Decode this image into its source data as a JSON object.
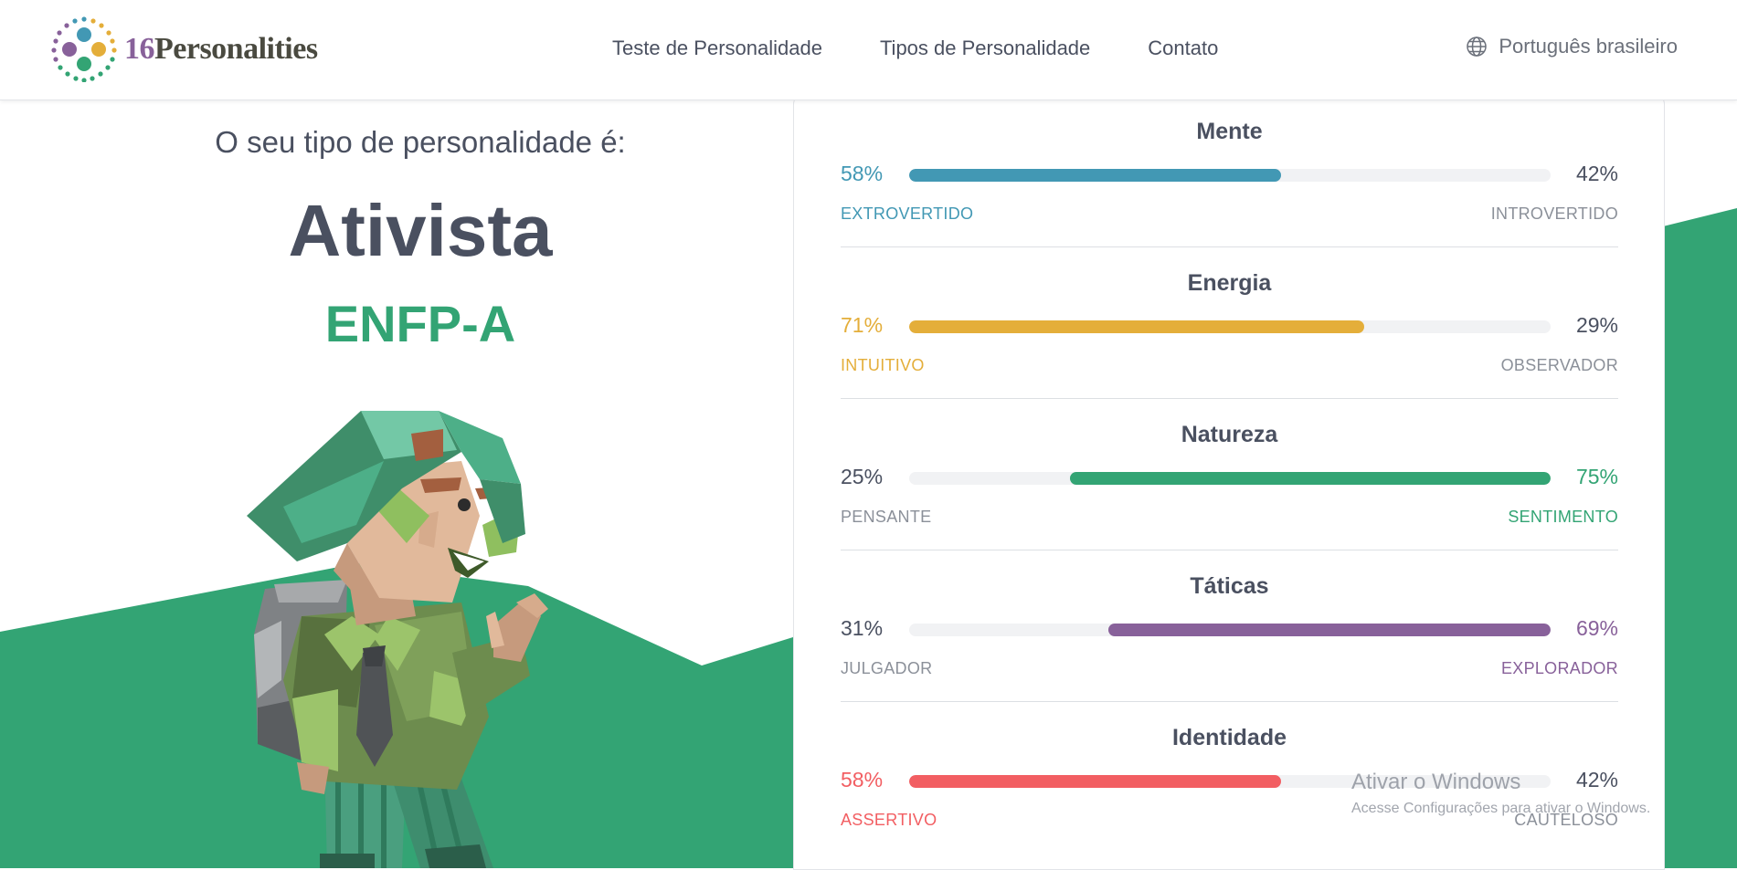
{
  "header": {
    "logo": {
      "number": "16",
      "word": "Personalities"
    },
    "nav": [
      {
        "label": "Teste de Personalidade"
      },
      {
        "label": "Tipos de Personalidade"
      },
      {
        "label": "Contato"
      }
    ],
    "language": "Português brasileiro"
  },
  "result": {
    "intro": "O seu tipo de personalidade é:",
    "type_name": "Ativista",
    "type_code": "ENFP-A"
  },
  "traits": [
    {
      "title": "Mente",
      "left_pct": "58%",
      "right_pct": "42%",
      "left_pole": "EXTROVERTIDO",
      "right_pole": "INTROVERTIDO",
      "value": 58,
      "dominant": "left",
      "color": "#4298b4"
    },
    {
      "title": "Energia",
      "left_pct": "71%",
      "right_pct": "29%",
      "left_pole": "INTUITIVO",
      "right_pole": "OBSERVADOR",
      "value": 71,
      "dominant": "left",
      "color": "#e4ae3a"
    },
    {
      "title": "Natureza",
      "left_pct": "25%",
      "right_pct": "75%",
      "left_pole": "PENSANTE",
      "right_pole": "SENTIMENTO",
      "value": 75,
      "dominant": "right",
      "color": "#33a474"
    },
    {
      "title": "Táticas",
      "left_pct": "31%",
      "right_pct": "69%",
      "left_pole": "JULGADOR",
      "right_pole": "EXPLORADOR",
      "value": 69,
      "dominant": "right",
      "color": "#88619a"
    },
    {
      "title": "Identidade",
      "left_pct": "58%",
      "right_pct": "42%",
      "left_pole": "ASSERTIVO",
      "right_pole": "CAUTELOSO",
      "value": 58,
      "dominant": "left",
      "color": "#f25e62"
    }
  ],
  "watermark": {
    "line1": "Ativar o Windows",
    "line2": "Acesse Configurações para ativar o Windows."
  },
  "colors": {
    "brand_green": "#33a474",
    "text_dark": "#4a5060",
    "neutral_text": "#4a5060",
    "neutral_pole": "#8b9099"
  }
}
